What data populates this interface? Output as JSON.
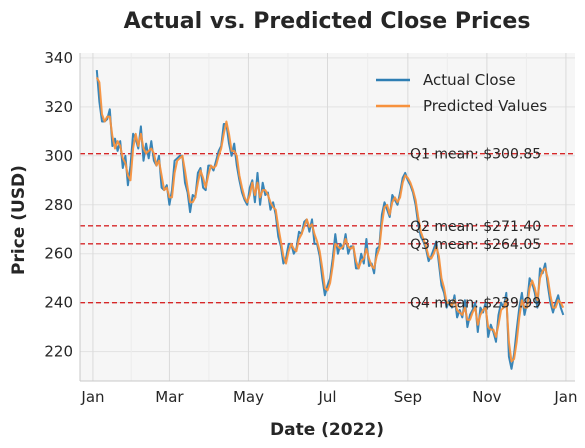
{
  "chart_data": {
    "type": "line",
    "title": "Actual vs. Predicted Close Prices",
    "xlabel": "Date (2022)",
    "ylabel": "Price (USD)",
    "x_tick_labels": [
      "Jan",
      "Mar",
      "May",
      "Jul",
      "Sep",
      "Nov",
      "Jan"
    ],
    "x_tick_days": [
      0,
      59,
      120,
      181,
      243,
      304,
      365
    ],
    "y_ticks": [
      220,
      240,
      260,
      280,
      300,
      320,
      340
    ],
    "ylim": [
      208,
      342
    ],
    "xlim_days": [
      -10,
      372
    ],
    "grid": true,
    "legend_position": "top-right",
    "annotations": [
      {
        "label": "Q1 mean: $300.85",
        "value": 300.85
      },
      {
        "label": "Q2 mean: $271.40",
        "value": 271.4
      },
      {
        "label": "Q3 mean: $264.05",
        "value": 264.05
      },
      {
        "label": "Q4 mean: $239.99",
        "value": 239.99
      }
    ],
    "series": [
      {
        "name": "Actual Close",
        "color": "#2e7eb3",
        "x": [
          3,
          5,
          7,
          9,
          11,
          13,
          15,
          17,
          19,
          21,
          23,
          25,
          27,
          29,
          31,
          33,
          35,
          37,
          39,
          41,
          43,
          45,
          47,
          49,
          51,
          53,
          55,
          57,
          59,
          61,
          63,
          65,
          67,
          69,
          71,
          73,
          75,
          77,
          79,
          81,
          83,
          85,
          87,
          89,
          91,
          93,
          95,
          97,
          99,
          101,
          103,
          105,
          107,
          109,
          111,
          113,
          115,
          117,
          119,
          121,
          123,
          125,
          127,
          129,
          131,
          133,
          135,
          137,
          139,
          141,
          143,
          145,
          147,
          149,
          151,
          153,
          155,
          157,
          159,
          161,
          163,
          165,
          167,
          169,
          171,
          173,
          175,
          177,
          179,
          181,
          183,
          185,
          187,
          189,
          191,
          193,
          195,
          197,
          199,
          201,
          203,
          205,
          207,
          209,
          211,
          213,
          215,
          217,
          219,
          221,
          223,
          225,
          227,
          229,
          231,
          233,
          235,
          237,
          239,
          241,
          243,
          245,
          247,
          249,
          251,
          253,
          255,
          257,
          259,
          261,
          263,
          265,
          267,
          269,
          271,
          273,
          275,
          277,
          279,
          281,
          283,
          285,
          287,
          289,
          291,
          293,
          295,
          297,
          299,
          301,
          303,
          305,
          307,
          309,
          311,
          313,
          315,
          317,
          319,
          321,
          323,
          325,
          327,
          329,
          331,
          333,
          335,
          337,
          339,
          341,
          343,
          345,
          347,
          349,
          351,
          353,
          355,
          357,
          359,
          361,
          363
        ],
        "y": [
          335,
          322,
          314,
          314,
          315,
          319,
          304,
          307,
          302,
          306,
          295,
          300,
          288,
          296,
          309,
          307,
          303,
          312,
          298,
          305,
          299,
          306,
          298,
          296,
          300,
          287,
          286,
          288,
          280,
          286,
          298,
          299,
          300,
          300,
          289,
          285,
          277,
          284,
          283,
          293,
          295,
          287,
          286,
          296,
          296,
          294,
          298,
          302,
          304,
          313,
          313,
          305,
          300,
          305,
          296,
          290,
          285,
          282,
          280,
          287,
          290,
          281,
          293,
          280,
          289,
          284,
          285,
          278,
          281,
          276,
          267,
          263,
          256,
          258,
          264,
          264,
          260,
          262,
          269,
          268,
          273,
          274,
          269,
          274,
          264,
          264,
          259,
          250,
          243,
          247,
          250,
          258,
          268,
          260,
          264,
          262,
          268,
          260,
          263,
          263,
          254,
          254,
          260,
          256,
          266,
          255,
          256,
          252,
          262,
          263,
          276,
          281,
          278,
          275,
          284,
          282,
          280,
          285,
          291,
          293,
          290,
          288,
          285,
          280,
          272,
          267,
          265,
          262,
          257,
          259,
          262,
          265,
          256,
          247,
          244,
          238,
          241,
          238,
          243,
          234,
          237,
          234,
          241,
          230,
          235,
          237,
          240,
          228,
          238,
          236,
          240,
          226,
          231,
          228,
          224,
          235,
          240,
          238,
          244,
          218,
          213,
          219,
          229,
          238,
          244,
          235,
          240,
          250,
          248,
          244,
          238,
          254,
          252,
          256,
          247,
          240,
          236,
          240,
          243,
          238,
          235
        ]
      },
      {
        "name": "Predicted Values",
        "color": "#f7913d",
        "x": [
          3,
          5,
          7,
          9,
          11,
          13,
          15,
          17,
          19,
          21,
          23,
          25,
          27,
          29,
          31,
          33,
          35,
          37,
          39,
          41,
          43,
          45,
          47,
          49,
          51,
          53,
          55,
          57,
          59,
          61,
          63,
          65,
          67,
          69,
          71,
          73,
          75,
          77,
          79,
          81,
          83,
          85,
          87,
          89,
          91,
          93,
          95,
          97,
          99,
          101,
          103,
          105,
          107,
          109,
          111,
          113,
          115,
          117,
          119,
          121,
          123,
          125,
          127,
          129,
          131,
          133,
          135,
          137,
          139,
          141,
          143,
          145,
          147,
          149,
          151,
          153,
          155,
          157,
          159,
          161,
          163,
          165,
          167,
          169,
          171,
          173,
          175,
          177,
          179,
          181,
          183,
          185,
          187,
          189,
          191,
          193,
          195,
          197,
          199,
          201,
          203,
          205,
          207,
          209,
          211,
          213,
          215,
          217,
          219,
          221,
          223,
          225,
          227,
          229,
          231,
          233,
          235,
          237,
          239,
          241,
          243,
          245,
          247,
          249,
          251,
          253,
          255,
          257,
          259,
          261,
          263,
          265,
          267,
          269,
          271,
          273,
          275,
          277,
          279,
          281,
          283,
          285,
          287,
          289,
          291,
          293,
          295,
          297,
          299,
          301,
          303,
          305,
          307,
          309,
          311,
          313,
          315,
          317,
          319,
          321,
          323,
          325,
          327,
          329,
          331,
          333,
          335,
          337,
          339,
          341,
          343,
          345,
          347,
          349,
          351,
          353,
          355,
          357,
          359,
          361,
          363
        ],
        "y": [
          332,
          330,
          317,
          314,
          316,
          316,
          308,
          303,
          306,
          304,
          299,
          297,
          292,
          290,
          303,
          309,
          304,
          309,
          303,
          301,
          302,
          303,
          301,
          296,
          298,
          292,
          286,
          287,
          283,
          283,
          293,
          298,
          299,
          300,
          294,
          287,
          281,
          281,
          283,
          289,
          294,
          291,
          287,
          292,
          296,
          295,
          296,
          300,
          303,
          309,
          314,
          309,
          302,
          302,
          300,
          292,
          287,
          283,
          281,
          284,
          289,
          284,
          289,
          283,
          286,
          286,
          284,
          281,
          279,
          278,
          271,
          265,
          259,
          256,
          261,
          264,
          262,
          261,
          266,
          268,
          271,
          274,
          271,
          272,
          268,
          265,
          261,
          254,
          246,
          245,
          248,
          255,
          264,
          263,
          262,
          263,
          266,
          263,
          262,
          263,
          257,
          254,
          257,
          258,
          262,
          258,
          255,
          254,
          259,
          262,
          272,
          279,
          280,
          276,
          281,
          283,
          281,
          283,
          289,
          292,
          291,
          289,
          286,
          282,
          275,
          269,
          266,
          263,
          259,
          258,
          260,
          263,
          259,
          250,
          246,
          240,
          240,
          239,
          241,
          237,
          236,
          235,
          238,
          233,
          233,
          236,
          238,
          231,
          235,
          237,
          238,
          230,
          229,
          229,
          226,
          231,
          237,
          238,
          241,
          224,
          216,
          217,
          224,
          234,
          241,
          238,
          238,
          246,
          249,
          246,
          241,
          250,
          253,
          254,
          250,
          243,
          238,
          238,
          241,
          240,
          238
        ]
      }
    ]
  }
}
